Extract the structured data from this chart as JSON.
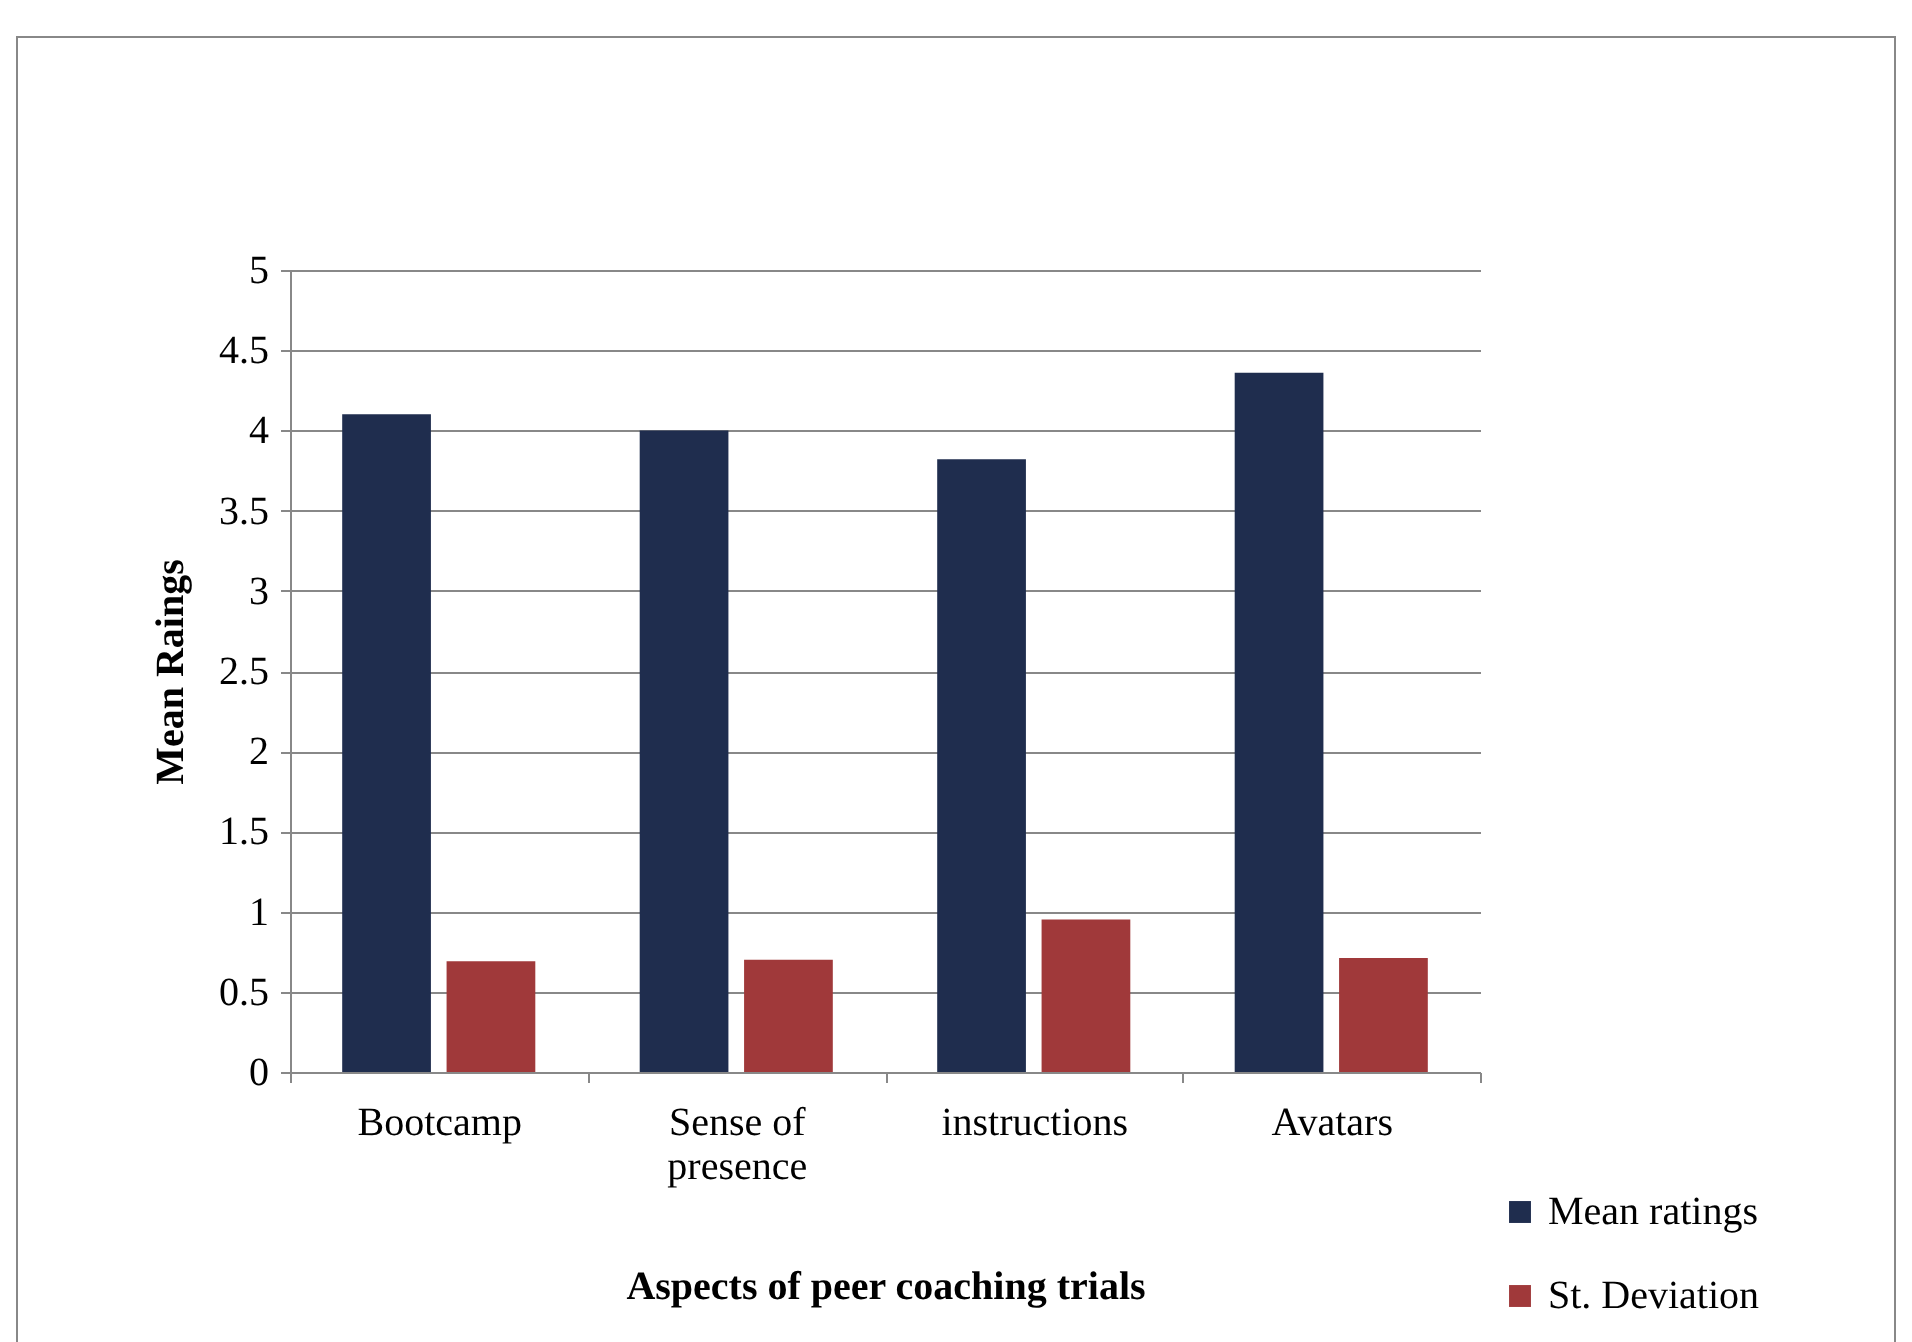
{
  "chart_data": {
    "type": "bar",
    "xlabel": "Aspects of peer coaching trials",
    "ylabel": "Mean Raings",
    "categories": [
      "Bootcamp",
      "Sense of presence",
      "instructions",
      "Avatars"
    ],
    "series": [
      {
        "name": "Mean ratings",
        "color": "#1f2d4e",
        "values": [
          4.1,
          4.0,
          3.82,
          4.36
        ]
      },
      {
        "name": "St. Deviation",
        "color": "#a0393a",
        "values": [
          0.69,
          0.7,
          0.95,
          0.71
        ]
      }
    ],
    "ylim": [
      0,
      5
    ],
    "yticks": [
      0,
      0.5,
      1,
      1.5,
      2,
      2.5,
      3,
      3.5,
      4,
      4.5,
      5
    ],
    "grid": "y",
    "legend": "bottom right"
  }
}
